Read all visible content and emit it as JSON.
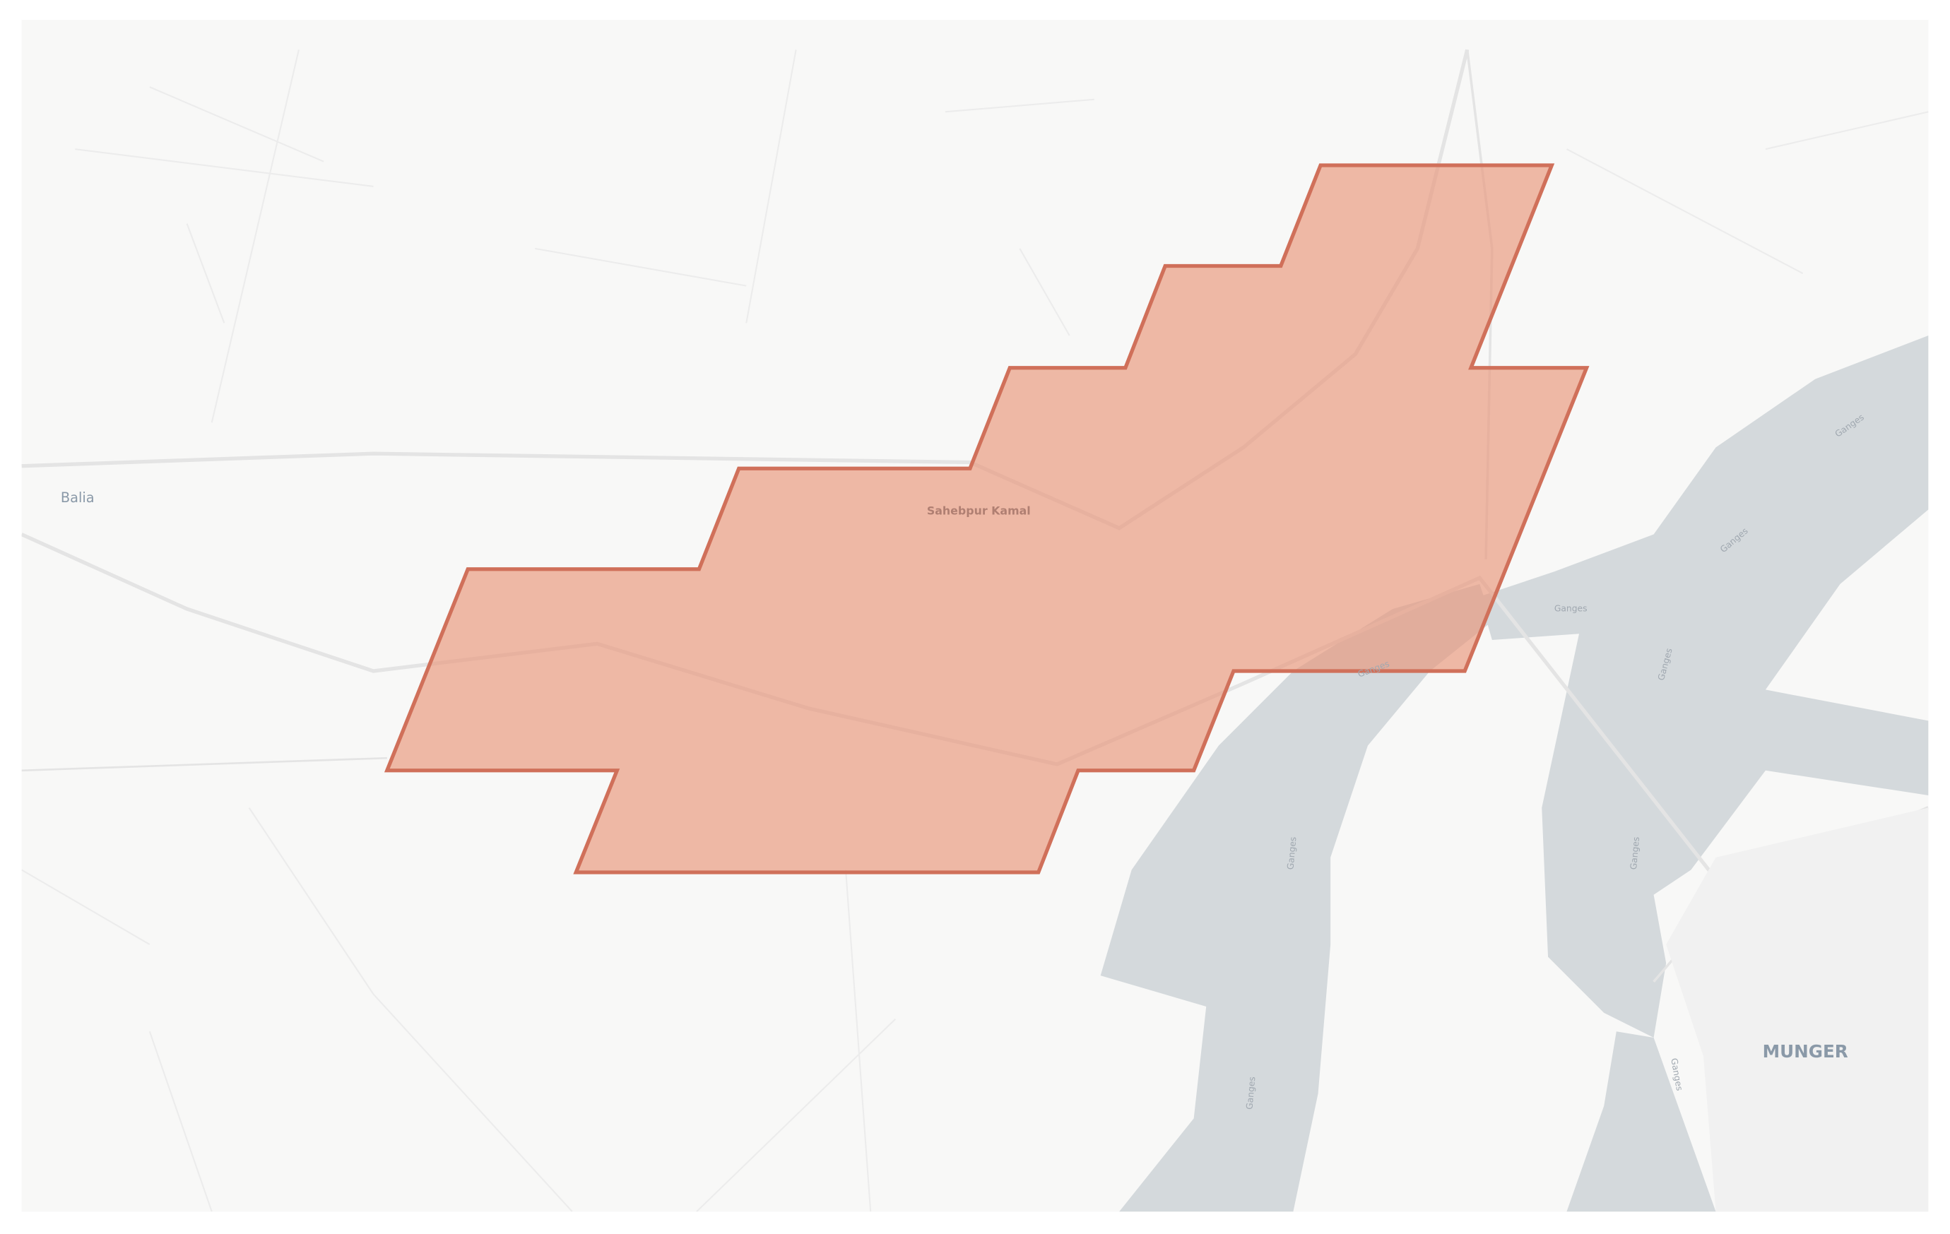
{
  "map": {
    "places": [
      {
        "name": "Balia"
      },
      {
        "name": "Sahebpur Kamal"
      },
      {
        "name": "MUNGER"
      }
    ],
    "river_label": "Ganges",
    "colors": {
      "background": "#f8f8f7",
      "water": "#d4d9dc",
      "roads": "#e6e6e6",
      "polygon_fill": "#e8957a",
      "polygon_stroke": "#d0705a",
      "place_label": "#8a99a8"
    }
  }
}
